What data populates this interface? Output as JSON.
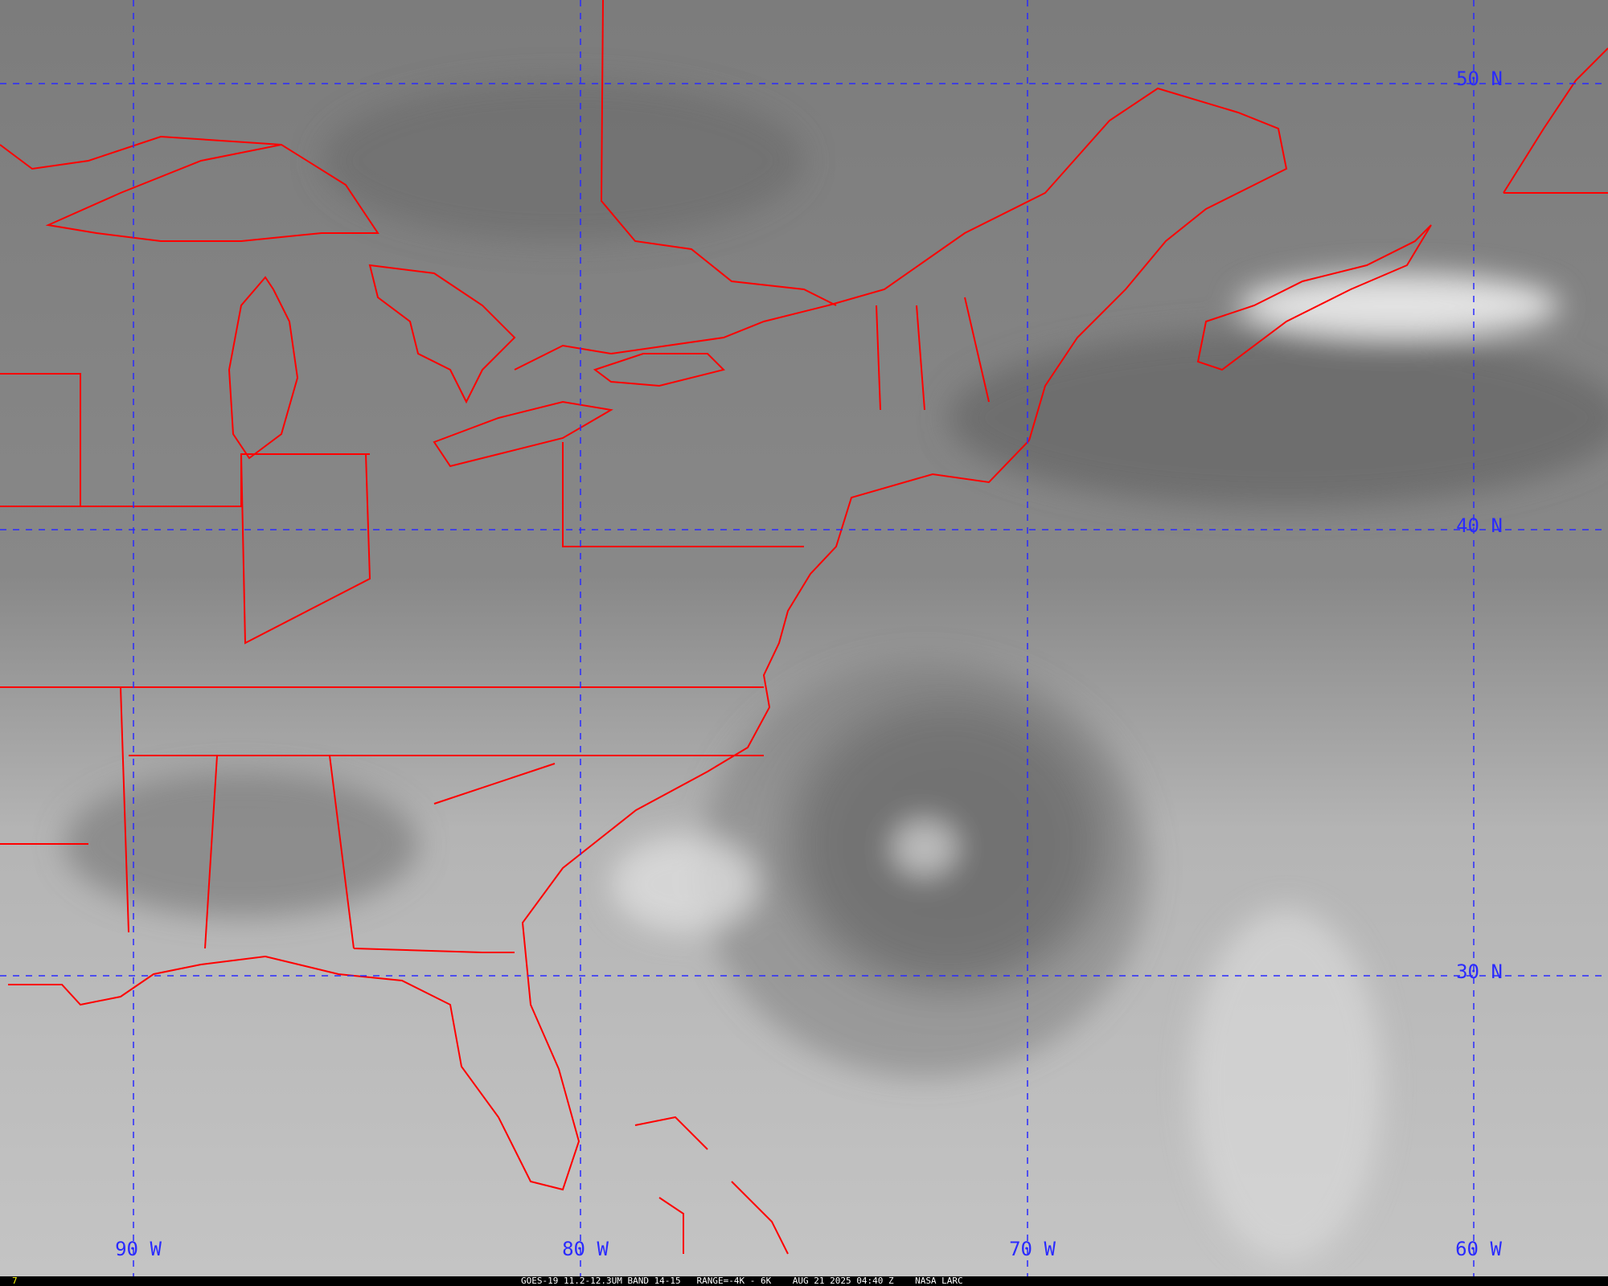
{
  "image": {
    "type": "satellite-infrared",
    "colors": {
      "grid": "#2a2aff",
      "borders": "#ff0000",
      "frame_number": "#ffff00",
      "caption_bar": "#000000"
    }
  },
  "grid": {
    "longitudes": [
      {
        "value": -90,
        "label": "90 W"
      },
      {
        "value": -80,
        "label": "80 W"
      },
      {
        "value": -70,
        "label": "70 W"
      },
      {
        "value": -60,
        "label": "60 W"
      }
    ],
    "latitudes": [
      {
        "value": 50,
        "label": "50 N"
      },
      {
        "value": 40,
        "label": "40 N"
      },
      {
        "value": 30,
        "label": "30 N"
      }
    ]
  },
  "caption": {
    "frame": "7",
    "text": "GOES-19 11.2-12.3UM BAND 14-15   RANGE=-4K - 6K    AUG 21 2025 04:40 Z    NASA LARC"
  }
}
